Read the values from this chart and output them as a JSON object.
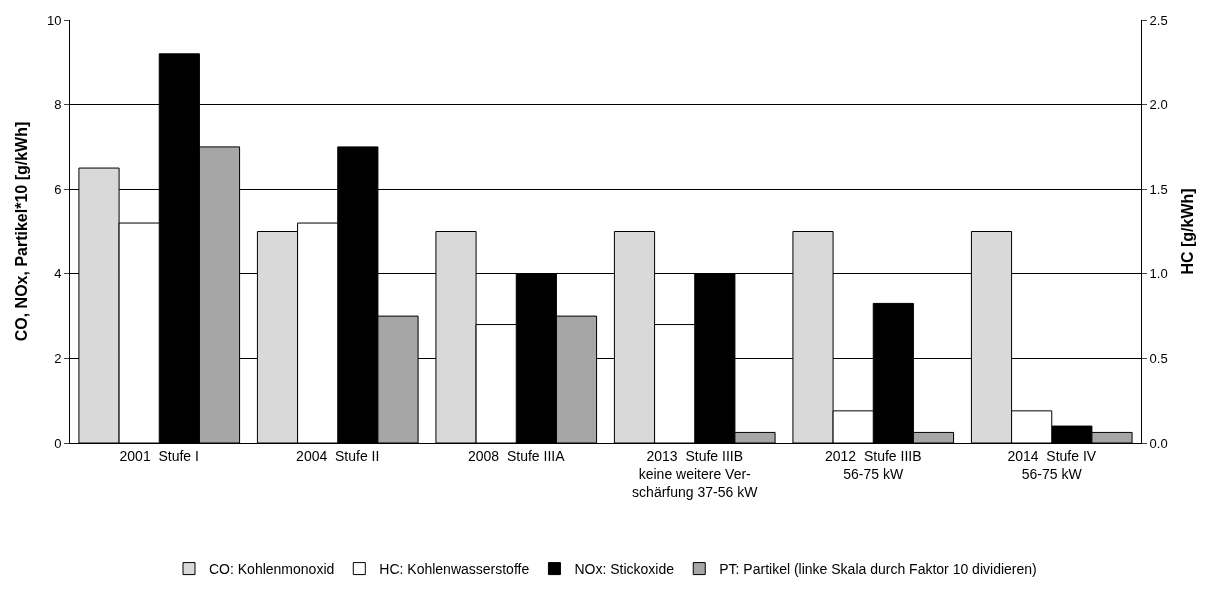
{
  "chart_data": {
    "type": "bar",
    "categories": [
      "2001  Stufe I",
      "2004  Stufe II",
      "2008  Stufe IIIA",
      "2013  Stufe IIIB\nkeine weitere Ver-\nschärfung 37-56 kW",
      "2012  Stufe IIIB\n56-75 kW",
      "2014  Stufe IV\n56-75 kW"
    ],
    "series": [
      {
        "name": "CO: Kohlenmonoxid",
        "color": "#d9d9d9",
        "values": [
          6.5,
          5,
          5,
          5,
          5,
          5
        ]
      },
      {
        "name": "HC: Kohlenwasserstoffe",
        "color": "#ffffff",
        "axis": "y2",
        "values": [
          1.3,
          1.3,
          0.7,
          0.7,
          0.19,
          0.19
        ]
      },
      {
        "name": "NOx: Stickoxide",
        "color": "#000000",
        "values": [
          9.2,
          7,
          4,
          4,
          3.3,
          0.4
        ]
      },
      {
        "name": "PT: Partikel (linke Skala durch Faktor 10 dividieren)",
        "color": "#a6a6a6",
        "values": [
          7,
          3,
          3,
          0.25,
          0.25,
          0.25
        ]
      }
    ],
    "ylabel": "CO, NOx, Partikel*10 [g/kWh]",
    "y2label": "HC [g/kWh]",
    "ylim": [
      0,
      10
    ],
    "yticks": [
      0,
      2,
      4,
      6,
      8,
      10
    ],
    "y2lim": [
      0,
      2.5
    ],
    "y2ticks": [
      {
        "value": 0,
        "label": "0.0"
      },
      {
        "value": 0.5,
        "label": "0.5"
      },
      {
        "value": 1,
        "label": "1.0"
      },
      {
        "value": 1.5,
        "label": "1.5"
      },
      {
        "value": 2,
        "label": "2.0"
      },
      {
        "value": 2.5,
        "label": "2.5"
      }
    ],
    "grid": "y",
    "legend": "bottom"
  }
}
